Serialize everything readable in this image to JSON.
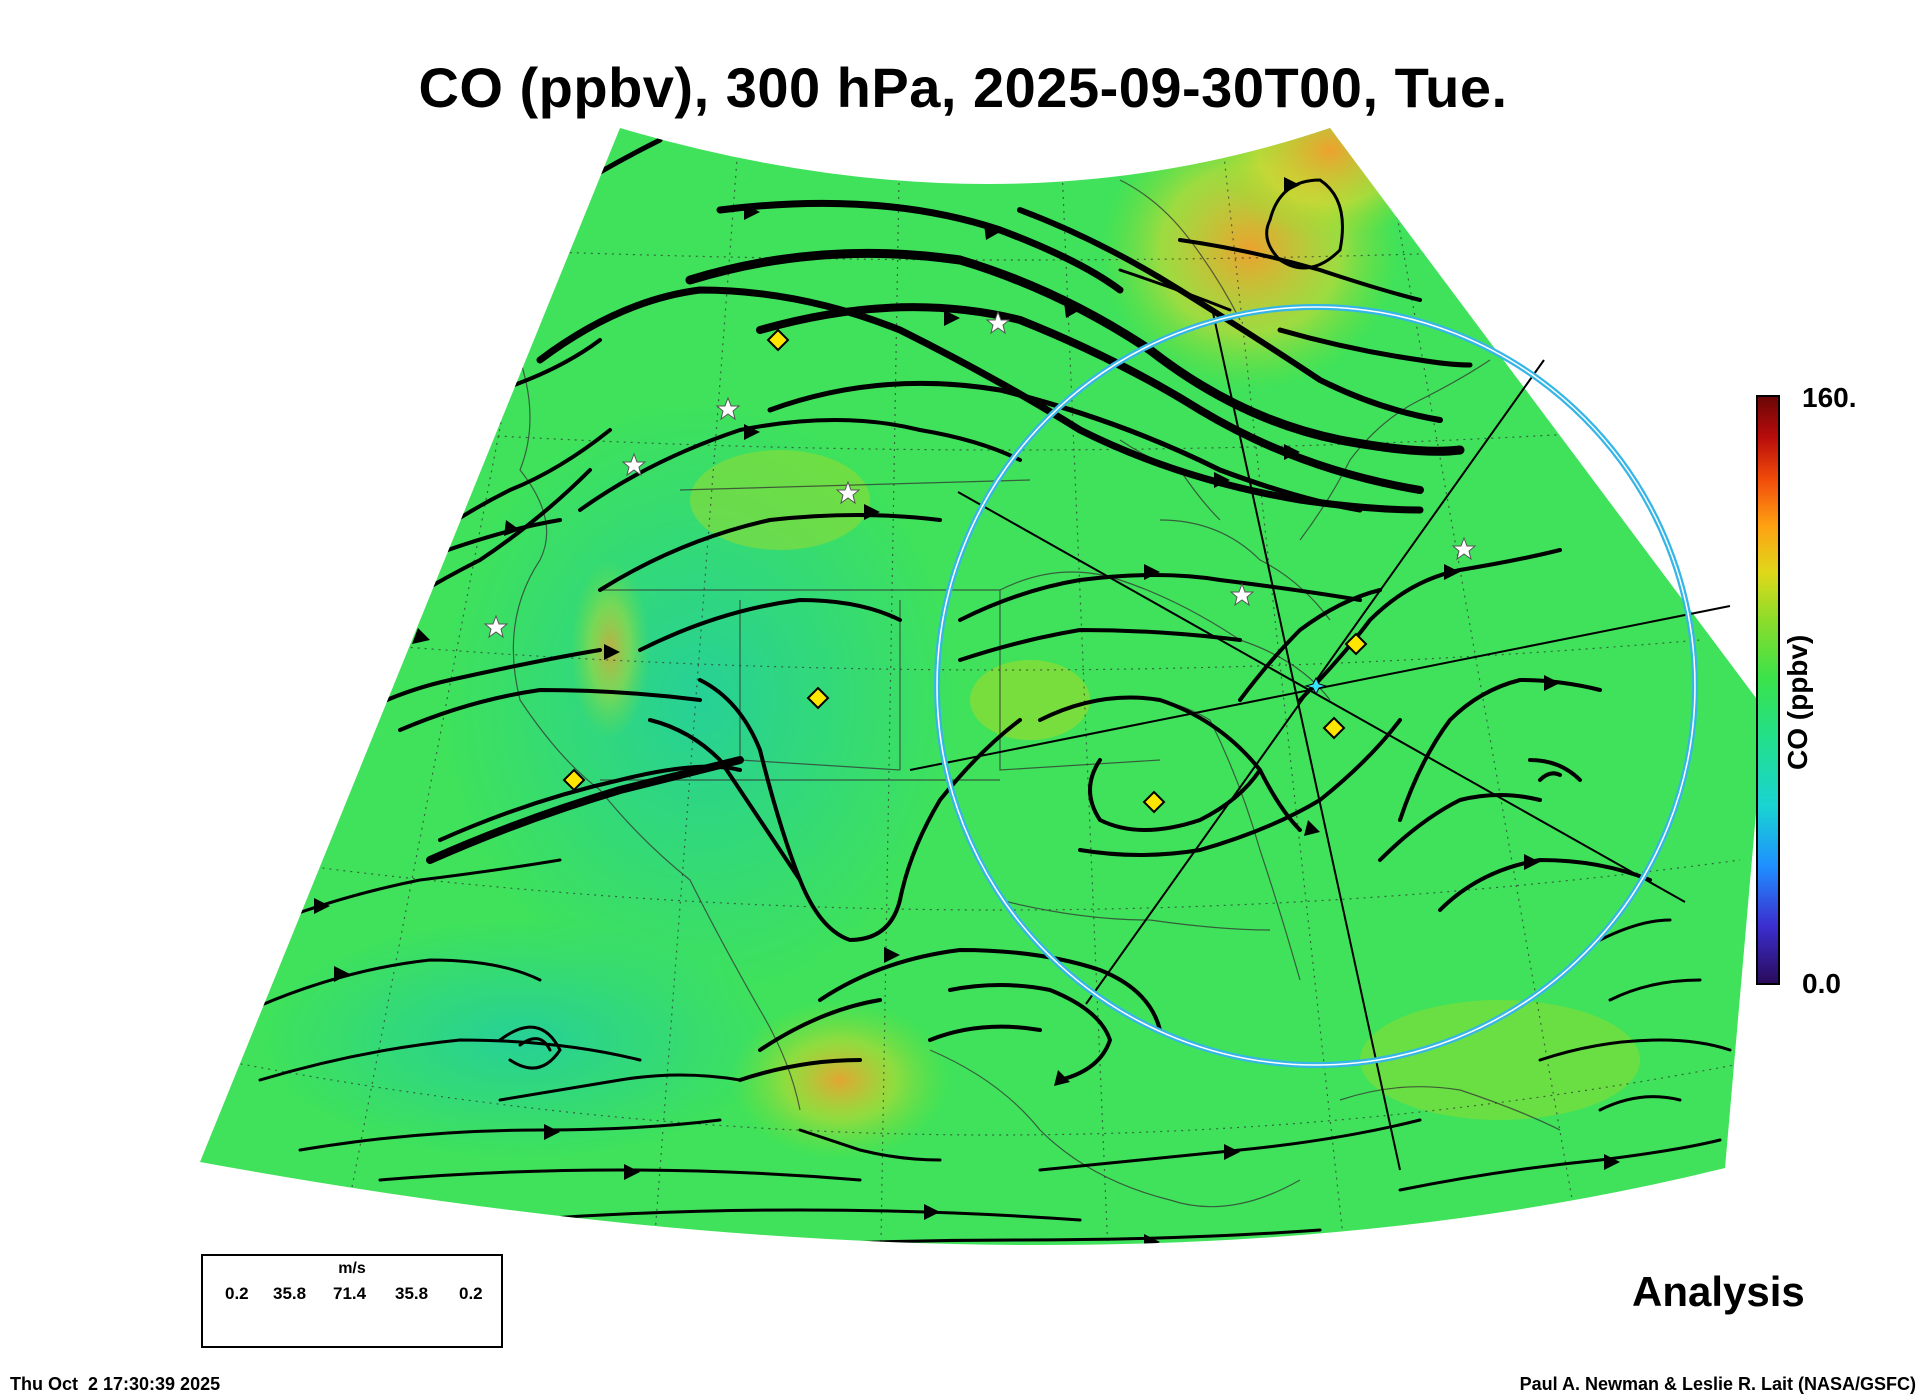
{
  "title": "CO (ppbv), 300 hPa, 2025-09-30T00, Tue.",
  "colorbar": {
    "max_label": "160.",
    "min_label": "0.0",
    "label": "CO (ppbv)",
    "range": [
      0.0,
      160.0
    ],
    "stops": [
      "#2a0a5a",
      "#3b2fd0",
      "#1f8fff",
      "#19d3d3",
      "#22e08a",
      "#3be24a",
      "#8ddc2a",
      "#e0d81a",
      "#ffa012",
      "#f04a0a",
      "#b80c0c",
      "#6a0606"
    ]
  },
  "wind_legend": {
    "unit": "m/s",
    "values": [
      "0.2",
      "35.8",
      "71.4",
      "35.8",
      "0.2"
    ]
  },
  "product_label": "Analysis",
  "footer": {
    "timestamp": "Thu Oct  2 17:30:39 2025",
    "credit": "Paul A. Newman & Leslie R. Lait (NASA/GSFC)"
  },
  "map": {
    "field_color": "#3fe25a",
    "highlight_color": "#ff9a2a",
    "circle_color": "#36b6e6",
    "streamline_color": "#000000",
    "station_marker_color": "#ffe600",
    "star_marker_color": "#ffffff"
  }
}
